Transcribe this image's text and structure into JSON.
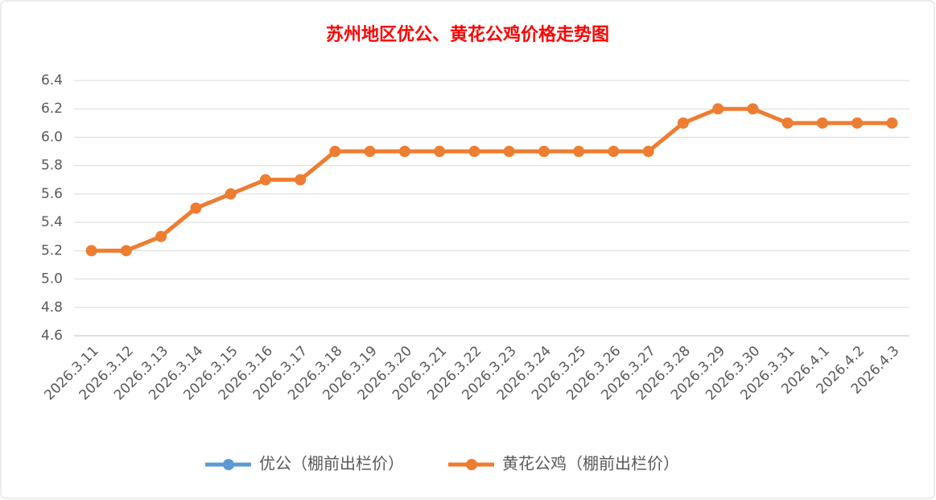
{
  "chart_data": {
    "type": "line",
    "title": "苏州地区优公、黄花公鸡价格走势图",
    "categories": [
      "2026.3.11",
      "2026.3.12",
      "2026.3.13",
      "2026.3.14",
      "2026.3.15",
      "2026.3.16",
      "2026.3.17",
      "2026.3.18",
      "2026.3.19",
      "2026.3.20",
      "2026.3.21",
      "2026.3.22",
      "2026.3.23",
      "2026.3.24",
      "2026.3.25",
      "2026.3.26",
      "2026.3.27",
      "2026.3.28",
      "2026.3.29",
      "2026.3.30",
      "2026.3.31",
      "2026.4.1",
      "2026.4.2",
      "2026.4.3"
    ],
    "series": [
      {
        "name": "优公（棚前出栏价）",
        "color": "#5b9bd5",
        "values": [
          null,
          null,
          null,
          null,
          null,
          null,
          null,
          null,
          null,
          null,
          null,
          null,
          null,
          null,
          null,
          null,
          null,
          null,
          null,
          null,
          null,
          null,
          null,
          null
        ]
      },
      {
        "name": "黄花公鸡（棚前出栏价）",
        "color": "#ed7d31",
        "values": [
          5.2,
          5.2,
          5.3,
          5.5,
          5.6,
          5.7,
          5.7,
          5.9,
          5.9,
          5.9,
          5.9,
          5.9,
          5.9,
          5.9,
          5.9,
          5.9,
          5.9,
          6.1,
          6.2,
          6.2,
          6.1,
          6.1,
          6.1,
          6.1
        ]
      }
    ],
    "ylim": [
      4.6,
      6.4
    ],
    "yticks": [
      4.6,
      4.8,
      {
        "value": 5,
        "label": "5.0"
      },
      5.2,
      5.4,
      5.6,
      5.8,
      {
        "value": 6,
        "label": "6.0"
      },
      6.2,
      6.4
    ],
    "grid": true,
    "legend": "bottom"
  }
}
